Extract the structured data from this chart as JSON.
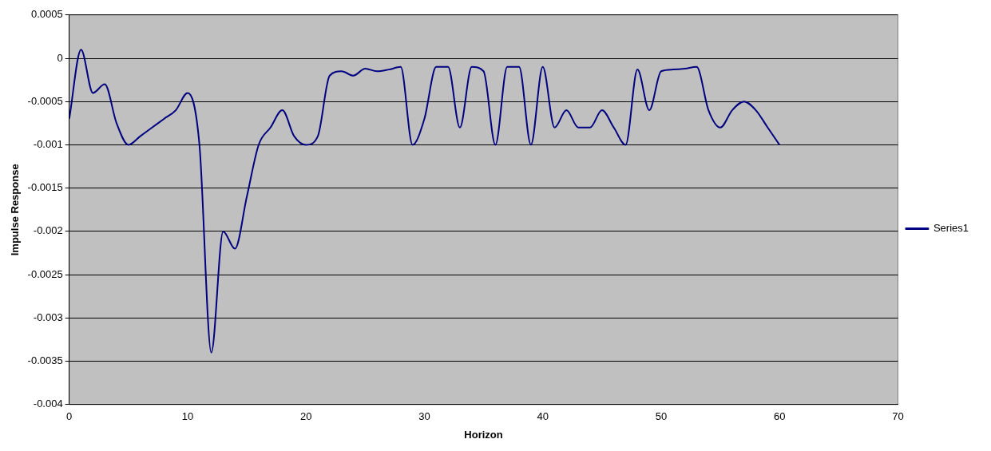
{
  "chart_data": {
    "type": "line",
    "xlabel": "Horizon",
    "ylabel": "Impulse Response",
    "x": [
      0,
      1,
      2,
      3,
      4,
      5,
      6,
      7,
      8,
      9,
      10,
      11,
      12,
      13,
      14,
      15,
      16,
      17,
      18,
      19,
      20,
      21,
      22,
      23,
      24,
      25,
      26,
      27,
      28,
      29,
      30,
      31,
      32,
      33,
      34,
      35,
      36,
      37,
      38,
      39,
      40,
      41,
      42,
      43,
      44,
      45,
      46,
      47,
      48,
      49,
      50,
      51,
      52,
      53,
      54,
      55,
      56,
      57,
      58,
      59,
      60
    ],
    "series": [
      {
        "name": "Series1",
        "color": "#000080",
        "values": [
          -0.0007,
          0.0001,
          -0.0004,
          -0.0003,
          -0.00075,
          -0.001,
          -0.0009,
          -0.0008,
          -0.0007,
          -0.0006,
          -0.0004,
          -0.001,
          -0.0034,
          -0.002,
          -0.0022,
          -0.0016,
          -0.001,
          -0.0008,
          -0.0006,
          -0.0009,
          -0.001,
          -0.0009,
          -0.0002,
          -0.00015,
          -0.0002,
          -0.00012,
          -0.00015,
          -0.00013,
          -0.0001,
          -0.001,
          -0.0007,
          -0.0001,
          -0.0001,
          -0.0008,
          -0.0001,
          -0.00015,
          -0.001,
          -0.0001,
          -0.0001,
          -0.001,
          -0.0001,
          -0.0008,
          -0.0006,
          -0.0008,
          -0.0008,
          -0.0006,
          -0.0008,
          -0.001,
          -0.00013,
          -0.0006,
          -0.00015,
          -0.00013,
          -0.00012,
          -0.0001,
          -0.0006,
          -0.0008,
          -0.0006,
          -0.0005,
          -0.0006,
          -0.0008,
          -0.001
        ]
      }
    ],
    "xlim": [
      0,
      70
    ],
    "xticks": [
      0,
      10,
      20,
      30,
      40,
      50,
      60,
      70
    ],
    "ylim": [
      -0.004,
      0.0005
    ],
    "yticks": [
      -0.004,
      -0.0035,
      -0.003,
      -0.0025,
      -0.002,
      -0.0015,
      -0.001,
      -0.0005,
      0,
      0.0005
    ],
    "grid": "y",
    "legend": "right",
    "marker": "none",
    "line_style": "solid"
  }
}
